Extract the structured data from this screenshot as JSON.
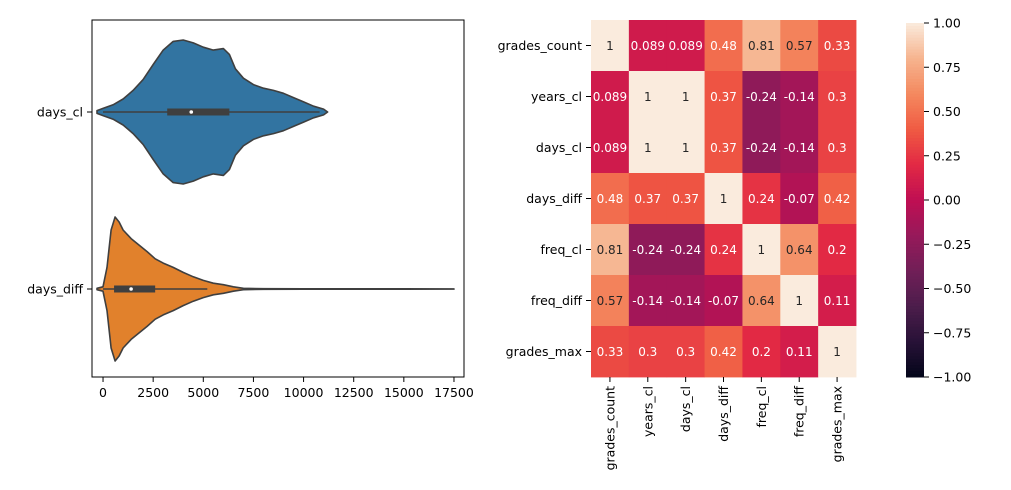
{
  "chart_data": [
    {
      "type": "violin",
      "orientation": "horizontal",
      "categories": [
        "days_cl",
        "days_diff"
      ],
      "xlim": [
        -550,
        18000
      ],
      "xticks": [
        0,
        2500,
        5000,
        7500,
        10000,
        12500,
        15000,
        17500
      ],
      "xtick_labels": [
        "0",
        "2500",
        "5000",
        "7500",
        "10000",
        "12500",
        "15000",
        "17500"
      ],
      "grid": false,
      "series": [
        {
          "category": "days_cl",
          "color": "#3274a1",
          "min": -300,
          "max": 11200,
          "q1": 3200,
          "median": 4400,
          "q3": 6300,
          "whisker_low": 0,
          "whisker_high": 10800,
          "density": [
            [
              -300,
              0.02
            ],
            [
              0,
              0.05
            ],
            [
              500,
              0.1
            ],
            [
              1000,
              0.18
            ],
            [
              1500,
              0.3
            ],
            [
              2000,
              0.45
            ],
            [
              2500,
              0.66
            ],
            [
              3000,
              0.86
            ],
            [
              3500,
              0.98
            ],
            [
              4000,
              1.0
            ],
            [
              4500,
              0.96
            ],
            [
              5000,
              0.9
            ],
            [
              5500,
              0.86
            ],
            [
              6000,
              0.88
            ],
            [
              6300,
              0.8
            ],
            [
              6600,
              0.6
            ],
            [
              7000,
              0.47
            ],
            [
              7500,
              0.38
            ],
            [
              8000,
              0.33
            ],
            [
              8500,
              0.3
            ],
            [
              9000,
              0.26
            ],
            [
              9500,
              0.2
            ],
            [
              10000,
              0.14
            ],
            [
              10500,
              0.08
            ],
            [
              11000,
              0.04
            ],
            [
              11200,
              0.0
            ]
          ]
        },
        {
          "category": "days_diff",
          "color": "#e1812c",
          "min": -300,
          "max": 17500,
          "q1": 550,
          "median": 1400,
          "q3": 2600,
          "whisker_low": 0,
          "whisker_high": 5200,
          "density": [
            [
              -300,
              0.01
            ],
            [
              0,
              0.03
            ],
            [
              200,
              0.3
            ],
            [
              400,
              0.82
            ],
            [
              600,
              1.0
            ],
            [
              800,
              0.93
            ],
            [
              1000,
              0.82
            ],
            [
              1400,
              0.7
            ],
            [
              1800,
              0.61
            ],
            [
              2200,
              0.52
            ],
            [
              2600,
              0.42
            ],
            [
              3000,
              0.36
            ],
            [
              3500,
              0.3
            ],
            [
              4000,
              0.23
            ],
            [
              4500,
              0.17
            ],
            [
              5000,
              0.12
            ],
            [
              5500,
              0.08
            ],
            [
              6000,
              0.06
            ],
            [
              6500,
              0.03
            ],
            [
              7000,
              0.01
            ],
            [
              8000,
              0.004
            ],
            [
              10000,
              0.003
            ],
            [
              12500,
              0.003
            ],
            [
              15000,
              0.003
            ],
            [
              17500,
              0.002
            ]
          ]
        }
      ]
    },
    {
      "type": "heatmap",
      "rows": [
        "grades_count",
        "years_cl",
        "days_cl",
        "days_diff",
        "freq_cl",
        "freq_diff",
        "grades_max"
      ],
      "columns": [
        "grades_count",
        "years_cl",
        "days_cl",
        "days_diff",
        "freq_cl",
        "freq_diff",
        "grades_max"
      ],
      "values": [
        [
          1,
          0.089,
          0.089,
          0.48,
          0.81,
          0.57,
          0.33
        ],
        [
          0.089,
          1,
          1,
          0.37,
          -0.24,
          -0.14,
          0.3
        ],
        [
          0.089,
          1,
          1,
          0.37,
          -0.24,
          -0.14,
          0.3
        ],
        [
          0.48,
          0.37,
          0.37,
          1,
          0.24,
          -0.07,
          0.42
        ],
        [
          0.81,
          -0.24,
          -0.24,
          0.24,
          1,
          0.64,
          0.2
        ],
        [
          0.57,
          -0.14,
          -0.14,
          -0.07,
          0.64,
          1,
          0.11
        ],
        [
          0.33,
          0.3,
          0.3,
          0.42,
          0.2,
          0.11,
          1
        ]
      ],
      "annotations": [
        [
          "1",
          "0.089",
          "0.089",
          "0.48",
          "0.81",
          "0.57",
          "0.33"
        ],
        [
          "0.089",
          "1",
          "1",
          "0.37",
          "-0.24",
          "-0.14",
          "0.3"
        ],
        [
          "0.089",
          "1",
          "1",
          "0.37",
          "-0.24",
          "-0.14",
          "0.3"
        ],
        [
          "0.48",
          "0.37",
          "0.37",
          "1",
          "0.24",
          "-0.07",
          "0.42"
        ],
        [
          "0.81",
          "-0.24",
          "-0.24",
          "0.24",
          "1",
          "0.64",
          "0.2"
        ],
        [
          "0.57",
          "-0.14",
          "-0.14",
          "-0.07",
          "0.64",
          "1",
          "0.11"
        ],
        [
          "0.33",
          "0.3",
          "0.3",
          "0.42",
          "0.2",
          "0.11",
          "1"
        ]
      ],
      "colorscale": "rocket",
      "colorbar": {
        "range": [
          -1.0,
          1.0
        ],
        "ticks": [
          1.0,
          0.75,
          0.5,
          0.25,
          0.0,
          -0.25,
          -0.5,
          -0.75,
          -1.0
        ],
        "tick_labels": [
          "1.00",
          "0.75",
          "0.50",
          "0.25",
          "0.00",
          "−0.25",
          "−0.50",
          "−0.75",
          "−1.00"
        ]
      }
    }
  ]
}
